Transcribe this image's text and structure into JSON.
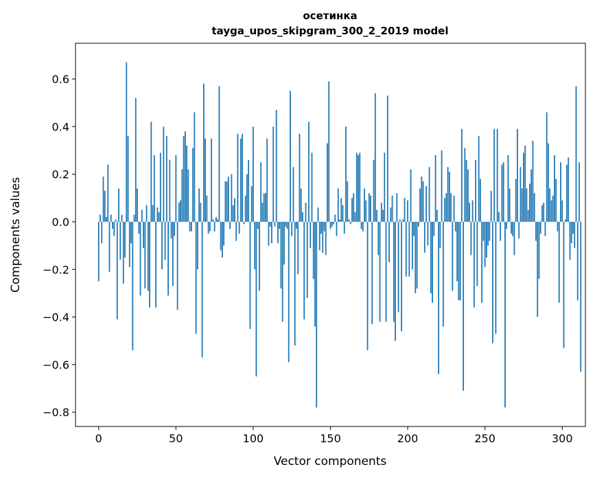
{
  "chart_data": {
    "type": "bar",
    "title": "осетинка",
    "subtitle": "tayga_upos_skipgram_300_2_2019 model",
    "xlabel": "Vector components",
    "ylabel": "Components values",
    "xlim": [
      -15,
      315
    ],
    "ylim": [
      -0.86,
      0.75
    ],
    "xticks": [
      0,
      50,
      100,
      150,
      200,
      250,
      300
    ],
    "yticks": [
      -0.8,
      -0.6,
      -0.4,
      -0.2,
      0.0,
      0.2,
      0.4,
      0.6
    ],
    "ytick_labels": [
      "−0.8",
      "−0.6",
      "−0.4",
      "−0.2",
      "0.0",
      "0.2",
      "0.4",
      "0.6"
    ],
    "grid": false,
    "legend": "none",
    "bar_color": "#1f77b4",
    "values": [
      -0.25,
      0.03,
      -0.09,
      0.19,
      0.13,
      0.02,
      0.24,
      -0.21,
      0.03,
      -0.03,
      -0.06,
      0.01,
      -0.41,
      0.14,
      -0.16,
      0.03,
      -0.26,
      -0.15,
      0.67,
      0.36,
      -0.19,
      -0.09,
      -0.54,
      0.03,
      0.52,
      0.14,
      -0.05,
      -0.31,
      0.05,
      -0.11,
      -0.28,
      0.07,
      -0.29,
      -0.36,
      0.42,
      0.07,
      0.28,
      -0.36,
      0.06,
      0.04,
      0.29,
      -0.2,
      0.4,
      -0.16,
      0.36,
      -0.31,
      0.26,
      -0.07,
      -0.27,
      -0.06,
      0.28,
      -0.37,
      0.08,
      0.09,
      0.22,
      0.36,
      0.38,
      0.32,
      0.22,
      -0.04,
      -0.04,
      0.31,
      0.46,
      -0.47,
      -0.2,
      0.14,
      0.08,
      -0.57,
      0.58,
      0.35,
      0.11,
      -0.05,
      -0.04,
      0.35,
      0.01,
      -0.04,
      0.02,
      0.01,
      0.57,
      -0.12,
      -0.15,
      -0.1,
      0.17,
      0.17,
      0.19,
      -0.03,
      0.2,
      0.07,
      0.1,
      -0.08,
      0.37,
      -0.05,
      0.35,
      0.37,
      -0.01,
      0.11,
      0.2,
      0.26,
      -0.45,
      0.15,
      0.4,
      -0.2,
      -0.65,
      -0.03,
      -0.29,
      0.25,
      0.08,
      0.12,
      0.12,
      0.35,
      -0.1,
      -0.02,
      -0.09,
      0.4,
      -0.02,
      0.47,
      -0.09,
      -0.03,
      -0.28,
      -0.42,
      -0.18,
      -0.02,
      -0.03,
      -0.59,
      0.55,
      -0.06,
      0.23,
      -0.52,
      -0.03,
      -0.22,
      0.37,
      0.14,
      0.04,
      -0.41,
      0.08,
      -0.32,
      0.42,
      -0.11,
      0.29,
      -0.24,
      -0.44,
      -0.78,
      0.06,
      -0.12,
      -0.05,
      -0.13,
      -0.04,
      -0.14,
      0.33,
      0.59,
      -0.03,
      -0.02,
      -0.01,
      0.03,
      -0.06,
      0.14,
      0.01,
      0.1,
      0.07,
      -0.05,
      0.4,
      0.17,
      0.01,
      -0.01,
      0.1,
      0.12,
      0.04,
      0.29,
      0.28,
      0.29,
      -0.03,
      -0.04,
      0.14,
      0.09,
      -0.54,
      0.12,
      0.11,
      -0.43,
      0.26,
      0.54,
      0.05,
      -0.14,
      -0.42,
      0.08,
      0.05,
      0.29,
      -0.42,
      0.53,
      -0.17,
      0.06,
      0.11,
      -0.42,
      -0.5,
      0.12,
      -0.38,
      0.01,
      -0.46,
      0.01,
      0.1,
      -0.23,
      0.09,
      -0.23,
      0.22,
      -0.2,
      -0.06,
      -0.3,
      -0.28,
      -0.02,
      0.14,
      0.19,
      0.17,
      -0.13,
      0.15,
      -0.1,
      0.23,
      -0.3,
      -0.34,
      -0.06,
      0.28,
      0.05,
      -0.64,
      -0.11,
      0.3,
      -0.44,
      0.1,
      0.12,
      0.23,
      0.21,
      0.12,
      -0.29,
      0.11,
      -0.04,
      -0.25,
      -0.33,
      -0.33,
      0.39,
      -0.71,
      0.31,
      0.26,
      0.22,
      0.08,
      -0.14,
      0.09,
      -0.36,
      0.26,
      -0.27,
      0.36,
      0.18,
      -0.34,
      -0.08,
      -0.19,
      -0.15,
      -0.1,
      -0.08,
      0.13,
      -0.51,
      0.39,
      -0.47,
      0.39,
      0.04,
      -0.08,
      0.24,
      0.25,
      -0.78,
      -0.03,
      0.28,
      0.14,
      -0.05,
      -0.06,
      -0.14,
      0.18,
      0.39,
      -0.07,
      0.23,
      0.14,
      0.29,
      0.32,
      0.14,
      0.05,
      0.16,
      0.22,
      0.34,
      0.12,
      -0.08,
      -0.4,
      -0.24,
      -0.05,
      0.07,
      0.08,
      -0.06,
      0.46,
      0.33,
      0.14,
      0.09,
      0.11,
      0.28,
      0.18,
      -0.04,
      -0.34,
      0.25,
      0.09,
      -0.53,
      0.01,
      0.24,
      0.27,
      -0.16,
      -0.09,
      -0.05,
      -0.11,
      0.57,
      -0.33,
      0.25,
      -0.63
    ]
  }
}
